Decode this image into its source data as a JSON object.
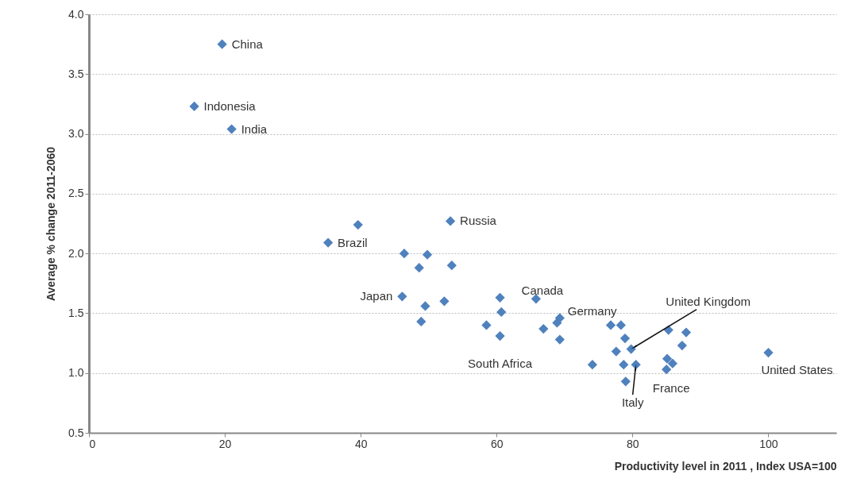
{
  "chart_data": {
    "type": "scatter",
    "xlabel": "Productivity level in 2011 , Index USA=100",
    "ylabel": "Average % change 2011-2060",
    "xlim": [
      0,
      110
    ],
    "xticks": [
      0,
      20,
      40,
      60,
      80,
      100
    ],
    "ylim": [
      0.5,
      4.0
    ],
    "yticks": [
      {
        "value": 0.5,
        "label": "0.5"
      },
      {
        "value": 1.0,
        "label": "1.0"
      },
      {
        "value": 1.5,
        "label": "1.5"
      },
      {
        "value": 2.0,
        "label": "2.0"
      },
      {
        "value": 2.5,
        "label": "2.5"
      },
      {
        "value": 3.0,
        "label": "3.0"
      },
      {
        "value": 3.5,
        "label": "3.5"
      },
      {
        "value": 4.0,
        "label": "4.0"
      }
    ],
    "grid": "y",
    "marker": "diamond",
    "series": [
      {
        "color": "#4f81bd",
        "x": [
          19.6,
          15.5,
          21.0,
          35.2,
          39.6,
          53.2,
          46.4,
          49.8,
          48.6,
          53.4,
          46.1,
          49.5,
          52.3,
          48.9,
          60.5,
          60.7,
          58.5,
          60.5,
          65.8,
          66.9,
          69.3,
          68.9,
          69.3,
          76.8,
          78.3,
          78.9,
          77.6,
          79.8,
          74.1,
          78.7,
          80.5,
          79.0,
          85.3,
          87.9,
          87.3,
          85.1,
          85.9,
          85.0,
          100
        ],
        "values": [
          3.75,
          3.23,
          3.04,
          2.09,
          2.24,
          2.27,
          2.0,
          1.99,
          1.88,
          1.9,
          1.64,
          1.56,
          1.6,
          1.43,
          1.63,
          1.51,
          1.4,
          1.31,
          1.62,
          1.37,
          1.46,
          1.42,
          1.28,
          1.4,
          1.4,
          1.29,
          1.18,
          1.2,
          1.07,
          1.07,
          1.07,
          0.93,
          1.36,
          1.34,
          1.23,
          1.12,
          1.08,
          1.03,
          1.17
        ]
      }
    ],
    "annotations": [
      {
        "text": "China",
        "x": 19.6,
        "y": 3.75
      },
      {
        "text": "Indonesia",
        "x": 15.5,
        "y": 3.23
      },
      {
        "text": "India",
        "x": 21.0,
        "y": 3.04
      },
      {
        "text": "Brazil",
        "x": 35.2,
        "y": 2.09
      },
      {
        "text": "Russia",
        "x": 53.2,
        "y": 2.27
      },
      {
        "text": "Japan",
        "x": 46.1,
        "y": 1.64
      },
      {
        "text": "Canada",
        "x": 65.8,
        "y": 1.62
      },
      {
        "text": "Germany",
        "x": 69.3,
        "y": 1.46
      },
      {
        "text": "South Africa",
        "x": 60.5,
        "y": 1.31
      },
      {
        "text": "United Kingdom",
        "x": 79.8,
        "y": 1.2
      },
      {
        "text": "Italy",
        "x": 80.5,
        "y": 1.07
      },
      {
        "text": "France",
        "x": 85.0,
        "y": 1.03
      },
      {
        "text": "United States",
        "x": 100,
        "y": 1.17
      }
    ]
  }
}
